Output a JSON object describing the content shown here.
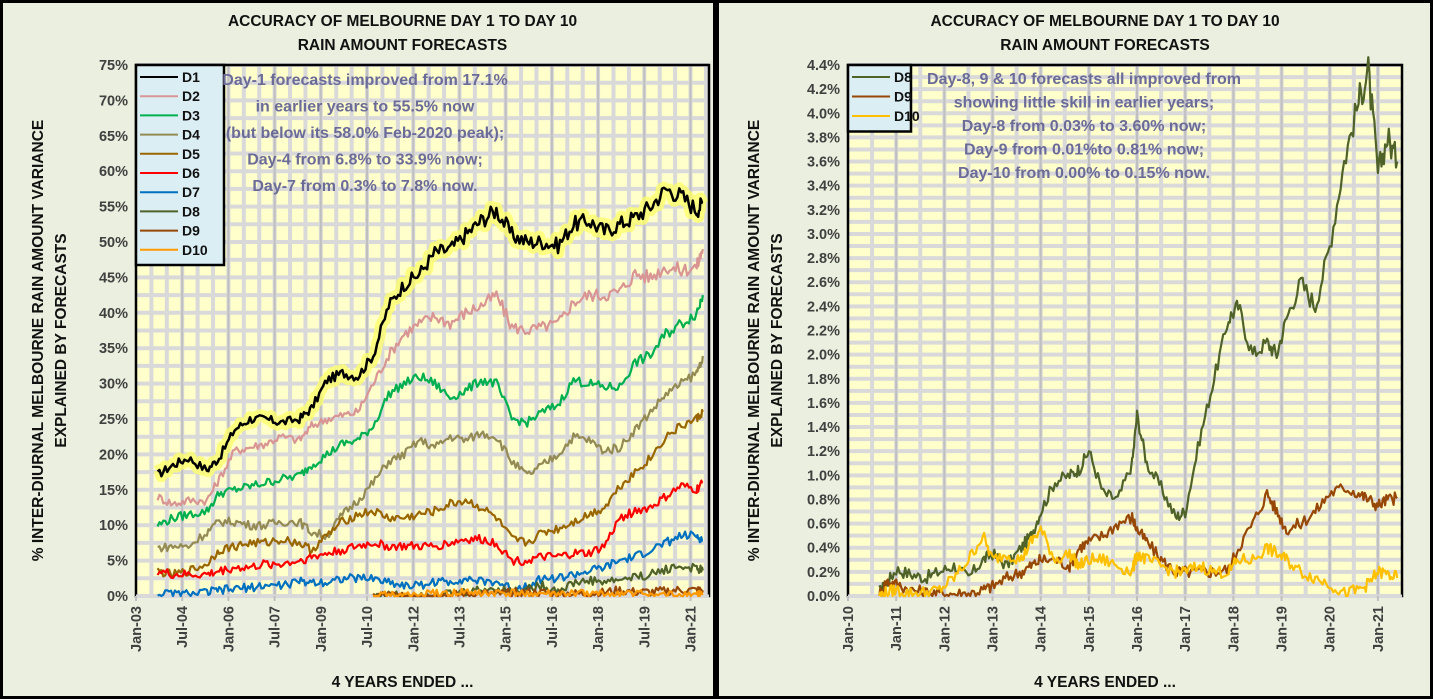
{
  "chart_data": [
    {
      "type": "line",
      "title": [
        "ACCURACY OF MELBOURNE DAY 1 TO DAY 10",
        "RAIN AMOUNT FORECASTS"
      ],
      "xlabel": "4 YEARS ENDED ...",
      "ylabel": [
        "% INTER-DIURNAL MELBOURNE RAIN AMOUNT VARIANCE",
        "EXPLAINED BY FORECASTS"
      ],
      "ylim": [
        0,
        75
      ],
      "y_ticks": [
        "0%",
        "5%",
        "10%",
        "15%",
        "20%",
        "25%",
        "30%",
        "35%",
        "40%",
        "45%",
        "50%",
        "55%",
        "60%",
        "65%",
        "70%",
        "75%"
      ],
      "xlim": [
        2003.0,
        2021.6
      ],
      "x_ticks": [
        {
          "label": "Jan-03",
          "x": 2003.0
        },
        {
          "label": "Jul-04",
          "x": 2004.5
        },
        {
          "label": "Jan-06",
          "x": 2006.0
        },
        {
          "label": "Jul-07",
          "x": 2007.5
        },
        {
          "label": "Jan-09",
          "x": 2009.0
        },
        {
          "label": "Jul-10",
          "x": 2010.5
        },
        {
          "label": "Jan-12",
          "x": 2012.0
        },
        {
          "label": "Jul-13",
          "x": 2013.5
        },
        {
          "label": "Jan-15",
          "x": 2015.0
        },
        {
          "label": "Jul-16",
          "x": 2016.5
        },
        {
          "label": "Jan-18",
          "x": 2018.0
        },
        {
          "label": "Jul-19",
          "x": 2019.5
        },
        {
          "label": "Jan-21",
          "x": 2021.0
        }
      ],
      "grid": true,
      "legend_position": "top-left",
      "annotation": [
        "Day-1 forecasts improved from 17.1%",
        "in earlier years to 55.5% now",
        "(but below its 58.0% Feb-2020 peak);",
        "Day-4 from 6.8% to 33.9% now;",
        "Day-7 from 0.3% to 7.8% now."
      ],
      "x": [
        2003.7,
        2004.2,
        2004.7,
        2005.3,
        2005.7,
        2006.2,
        2006.7,
        2007.2,
        2007.7,
        2008.3,
        2008.7,
        2009.2,
        2009.7,
        2010.2,
        2010.7,
        2011.2,
        2011.7,
        2012.2,
        2012.7,
        2013.2,
        2013.7,
        2014.2,
        2014.7,
        2015.2,
        2015.7,
        2016.2,
        2016.7,
        2017.2,
        2017.7,
        2018.2,
        2018.7,
        2019.2,
        2019.7,
        2020.2,
        2020.7,
        2021.2,
        2021.4
      ],
      "series": [
        {
          "name": "D1",
          "color": "#000000",
          "glow": true,
          "values": [
            17.1,
            18.5,
            19.5,
            17.8,
            19.5,
            23.5,
            25.0,
            25.0,
            24.5,
            25.0,
            26.5,
            30.5,
            31.5,
            31.0,
            34.0,
            41.0,
            44.0,
            45.5,
            48.5,
            49.0,
            51.0,
            53.0,
            54.5,
            51.0,
            50.0,
            50.0,
            49.5,
            52.5,
            53.0,
            51.5,
            52.5,
            53.5,
            55.0,
            57.5,
            56.5,
            54.5,
            55.5
          ]
        },
        {
          "name": "D2",
          "color": "#d99594",
          "values": [
            14.0,
            13.0,
            13.5,
            13.5,
            16.5,
            20.5,
            21.0,
            21.5,
            22.5,
            22.0,
            24.0,
            25.0,
            25.5,
            26.0,
            30.0,
            34.0,
            37.0,
            38.5,
            39.5,
            38.5,
            40.0,
            41.0,
            42.5,
            38.0,
            37.5,
            38.0,
            38.5,
            41.5,
            42.5,
            42.5,
            43.0,
            45.5,
            45.0,
            46.5,
            46.0,
            46.5,
            49.0
          ]
        },
        {
          "name": "D3",
          "color": "#00b050",
          "values": [
            10.0,
            11.0,
            11.5,
            12.0,
            14.5,
            15.0,
            15.5,
            16.0,
            16.5,
            17.0,
            18.5,
            20.0,
            21.5,
            22.0,
            24.0,
            28.5,
            30.0,
            31.0,
            30.0,
            28.0,
            29.0,
            30.5,
            30.0,
            25.0,
            24.5,
            26.0,
            27.0,
            30.5,
            30.0,
            29.5,
            29.5,
            33.0,
            34.0,
            37.0,
            38.5,
            40.0,
            42.5
          ]
        },
        {
          "name": "D4",
          "color": "#948a54",
          "values": [
            6.8,
            7.0,
            7.0,
            9.0,
            10.5,
            10.5,
            10.0,
            10.0,
            10.5,
            10.5,
            9.0,
            8.5,
            11.5,
            13.5,
            16.0,
            19.0,
            20.0,
            22.0,
            21.0,
            22.5,
            22.0,
            23.0,
            22.5,
            19.0,
            17.0,
            18.5,
            20.0,
            22.5,
            22.0,
            20.5,
            21.0,
            23.5,
            26.0,
            28.5,
            30.0,
            31.5,
            33.9
          ]
        },
        {
          "name": "D5",
          "color": "#996600",
          "values": [
            3.5,
            3.0,
            3.5,
            4.5,
            6.5,
            7.0,
            7.5,
            7.5,
            8.0,
            7.5,
            6.5,
            8.5,
            10.5,
            11.5,
            12.0,
            11.0,
            11.0,
            11.5,
            12.0,
            13.0,
            13.5,
            12.5,
            11.0,
            8.0,
            7.5,
            9.0,
            9.5,
            10.5,
            11.5,
            12.5,
            15.5,
            17.5,
            19.5,
            22.5,
            24.0,
            25.0,
            26.0
          ]
        },
        {
          "name": "D6",
          "color": "#ff0000",
          "values": [
            3.5,
            3.0,
            3.0,
            3.0,
            3.5,
            4.0,
            4.0,
            4.5,
            4.5,
            5.0,
            5.5,
            6.0,
            6.5,
            7.0,
            7.5,
            7.0,
            7.0,
            7.0,
            7.0,
            7.5,
            8.0,
            8.0,
            7.5,
            5.0,
            5.0,
            5.5,
            5.5,
            6.0,
            6.0,
            7.0,
            11.0,
            12.0,
            12.5,
            14.0,
            15.5,
            15.0,
            16.0
          ]
        },
        {
          "name": "D7",
          "color": "#0070c0",
          "values": [
            0.3,
            0.3,
            0.3,
            0.5,
            0.8,
            1.0,
            1.2,
            1.5,
            1.5,
            2.0,
            2.0,
            2.0,
            2.5,
            2.5,
            2.5,
            2.0,
            1.5,
            1.5,
            2.0,
            2.0,
            2.5,
            2.0,
            2.0,
            1.0,
            1.5,
            2.5,
            2.5,
            3.0,
            3.5,
            4.0,
            5.0,
            5.5,
            6.5,
            7.5,
            8.5,
            8.5,
            7.8
          ]
        },
        {
          "name": "D8",
          "color": "#4f6228",
          "values": [
            null,
            null,
            null,
            null,
            null,
            null,
            null,
            null,
            null,
            null,
            null,
            null,
            null,
            null,
            0.03,
            0.1,
            0.15,
            0.2,
            0.2,
            0.3,
            0.5,
            0.9,
            1.0,
            0.7,
            1.1,
            1.4,
            0.8,
            1.8,
            2.2,
            2.0,
            2.3,
            2.7,
            3.0,
            3.8,
            4.2,
            3.8,
            3.6
          ]
        },
        {
          "name": "D9",
          "color": "#974706",
          "values": [
            null,
            null,
            null,
            null,
            null,
            null,
            null,
            null,
            null,
            null,
            null,
            null,
            null,
            null,
            0.01,
            0.1,
            0.08,
            0.05,
            0.05,
            0.1,
            0.2,
            0.3,
            0.3,
            0.4,
            0.55,
            0.45,
            0.35,
            0.3,
            0.3,
            0.5,
            0.8,
            0.55,
            0.55,
            0.7,
            0.85,
            0.78,
            0.81
          ]
        },
        {
          "name": "D10",
          "color": "#ff9900",
          "values": [
            null,
            null,
            null,
            null,
            null,
            null,
            null,
            null,
            null,
            null,
            null,
            null,
            null,
            null,
            0.0,
            0.02,
            0.03,
            0.1,
            0.3,
            0.35,
            0.5,
            0.3,
            0.35,
            0.3,
            0.3,
            0.25,
            0.2,
            0.25,
            0.3,
            0.2,
            0.35,
            0.3,
            0.2,
            0.05,
            0.1,
            0.2,
            0.15
          ]
        }
      ]
    },
    {
      "type": "line",
      "title": [
        "ACCURACY OF MELBOURNE DAY 1 TO DAY 10",
        "RAIN AMOUNT FORECASTS"
      ],
      "xlabel": "4 YEARS ENDED ...",
      "ylabel": [
        "% INTER-DIURNAL MELBOURNE RAIN AMOUNT VARIANCE",
        "EXPLAINED BY FORECASTS"
      ],
      "ylim": [
        0,
        4.4
      ],
      "y_ticks": [
        "0.0%",
        "0.2%",
        "0.4%",
        "0.6%",
        "0.8%",
        "1.0%",
        "1.2%",
        "1.4%",
        "1.6%",
        "1.8%",
        "2.0%",
        "2.2%",
        "2.4%",
        "2.6%",
        "2.8%",
        "3.0%",
        "3.2%",
        "3.4%",
        "3.6%",
        "3.8%",
        "4.0%",
        "4.2%",
        "4.4%"
      ],
      "xlim": [
        2010.0,
        2021.5
      ],
      "x_ticks": [
        {
          "label": "Jan-10",
          "x": 2010
        },
        {
          "label": "Jan-11",
          "x": 2011
        },
        {
          "label": "Jan-12",
          "x": 2012
        },
        {
          "label": "Jan-13",
          "x": 2013
        },
        {
          "label": "Jan-14",
          "x": 2014
        },
        {
          "label": "Jan-15",
          "x": 2015
        },
        {
          "label": "Jan-16",
          "x": 2016
        },
        {
          "label": "Jan-17",
          "x": 2017
        },
        {
          "label": "Jan-18",
          "x": 2018
        },
        {
          "label": "Jan-19",
          "x": 2019
        },
        {
          "label": "Jan-20",
          "x": 2020
        },
        {
          "label": "Jan-21",
          "x": 2021
        }
      ],
      "grid": true,
      "legend_position": "top-left",
      "annotation": [
        "Day-8, 9 & 10 forecasts all improved from",
        "showing little skill in earlier years;",
        "Day-8 from 0.03% to 3.60% now;",
        "Day-9 from 0.01%to 0.81% now;",
        "Day-10 from 0.00% to 0.15% now."
      ],
      "x": [
        2010.65,
        2010.8,
        2011.0,
        2011.3,
        2011.6,
        2011.9,
        2012.2,
        2012.5,
        2012.8,
        2013.0,
        2013.3,
        2013.6,
        2013.8,
        2014.0,
        2014.3,
        2014.6,
        2014.8,
        2015.0,
        2015.3,
        2015.6,
        2015.9,
        2016.0,
        2016.2,
        2016.5,
        2016.8,
        2017.0,
        2017.3,
        2017.6,
        2017.9,
        2018.1,
        2018.4,
        2018.7,
        2018.9,
        2019.1,
        2019.4,
        2019.7,
        2020.0,
        2020.3,
        2020.6,
        2020.8,
        2021.0,
        2021.2,
        2021.4
      ],
      "series": [
        {
          "name": "D8",
          "color": "#4f6228",
          "values": [
            0.03,
            0.1,
            0.22,
            0.18,
            0.15,
            0.2,
            0.25,
            0.15,
            0.3,
            0.35,
            0.25,
            0.4,
            0.5,
            0.7,
            0.95,
            1.0,
            1.05,
            1.2,
            0.85,
            0.8,
            1.1,
            1.5,
            1.1,
            0.9,
            0.65,
            0.7,
            1.3,
            1.8,
            2.3,
            2.4,
            2.0,
            2.1,
            2.0,
            2.3,
            2.6,
            2.4,
            2.9,
            3.6,
            4.1,
            4.35,
            3.5,
            3.8,
            3.6
          ]
        },
        {
          "name": "D9",
          "color": "#974706",
          "values": [
            0.01,
            0.12,
            0.1,
            0.05,
            0.03,
            0.02,
            0.02,
            0.02,
            0.05,
            0.08,
            0.15,
            0.2,
            0.25,
            0.3,
            0.3,
            0.25,
            0.4,
            0.45,
            0.5,
            0.6,
            0.65,
            0.55,
            0.45,
            0.3,
            0.2,
            0.2,
            0.2,
            0.2,
            0.22,
            0.4,
            0.6,
            0.85,
            0.7,
            0.55,
            0.6,
            0.7,
            0.85,
            0.9,
            0.85,
            0.8,
            0.75,
            0.8,
            0.81
          ]
        },
        {
          "name": "D10",
          "color": "#ffc000",
          "values": [
            0.0,
            0.03,
            0.05,
            0.02,
            0.03,
            0.05,
            0.15,
            0.3,
            0.5,
            0.3,
            0.35,
            0.3,
            0.45,
            0.55,
            0.3,
            0.35,
            0.25,
            0.3,
            0.3,
            0.25,
            0.2,
            0.35,
            0.3,
            0.25,
            0.2,
            0.2,
            0.25,
            0.2,
            0.2,
            0.3,
            0.3,
            0.4,
            0.35,
            0.3,
            0.2,
            0.15,
            0.1,
            0.02,
            0.05,
            0.1,
            0.2,
            0.18,
            0.15
          ]
        }
      ]
    }
  ]
}
